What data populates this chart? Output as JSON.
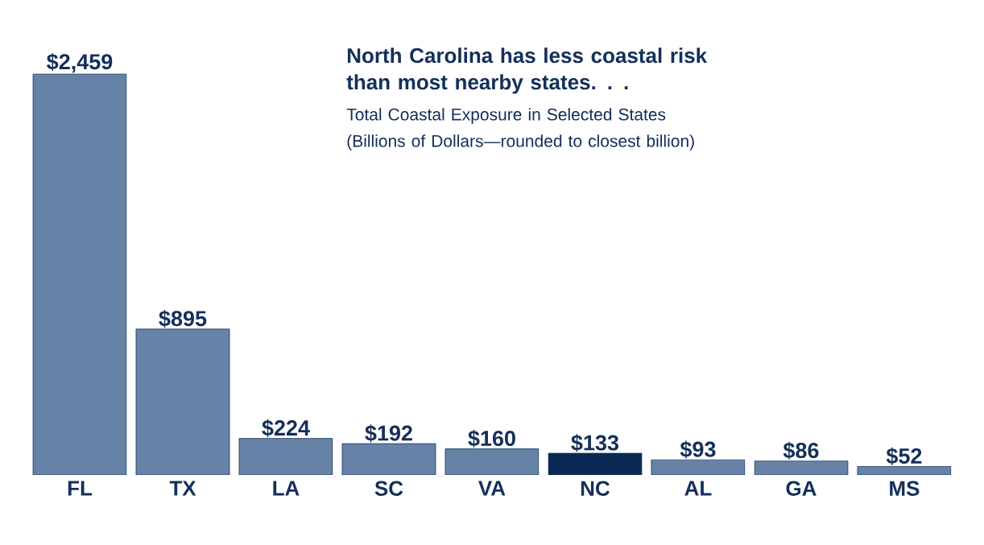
{
  "chart_data": {
    "type": "bar",
    "title": "North Carolina has less coastal risk than most nearby states. . .",
    "subtitle": "Total Coastal Exposure in Selected States (Billions of Dollars—rounded to closest billion)",
    "categories": [
      "FL",
      "TX",
      "LA",
      "SC",
      "VA",
      "NC",
      "AL",
      "GA",
      "MS"
    ],
    "values": [
      2459,
      895,
      224,
      192,
      160,
      133,
      93,
      86,
      52
    ],
    "value_labels": [
      "$2,459",
      "$895",
      "$224",
      "$192",
      "$160",
      "$133",
      "$93",
      "$86",
      "$52"
    ],
    "colors": [
      "#6682a6",
      "#6682a6",
      "#6682a6",
      "#6682a6",
      "#6682a6",
      "#0a2a55",
      "#6682a6",
      "#6682a6",
      "#6682a6"
    ]
  }
}
